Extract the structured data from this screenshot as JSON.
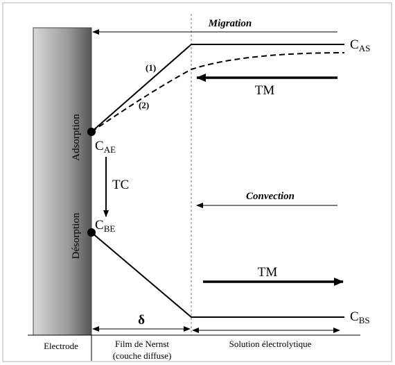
{
  "labels": {
    "migration": "Migration",
    "cas": {
      "main": "C",
      "sub": "AS"
    },
    "curve1": "(1)",
    "curve2": "(2)",
    "tm_top": "TM",
    "adsorption": "Adsorption",
    "cae": {
      "main": "C",
      "sub": "AE"
    },
    "tc": "TC",
    "convection": "Convection",
    "desorption": "Désorption",
    "cbe": {
      "main": "C",
      "sub": "BE"
    },
    "tm_bottom": "TM",
    "delta": "δ",
    "cbs": {
      "main": "C",
      "sub": "BS"
    },
    "electrode": "Electrode",
    "film_line1": "Film de Nernst",
    "film_line2": "(couche diffuse)",
    "solution": "Solution électrolytique"
  }
}
